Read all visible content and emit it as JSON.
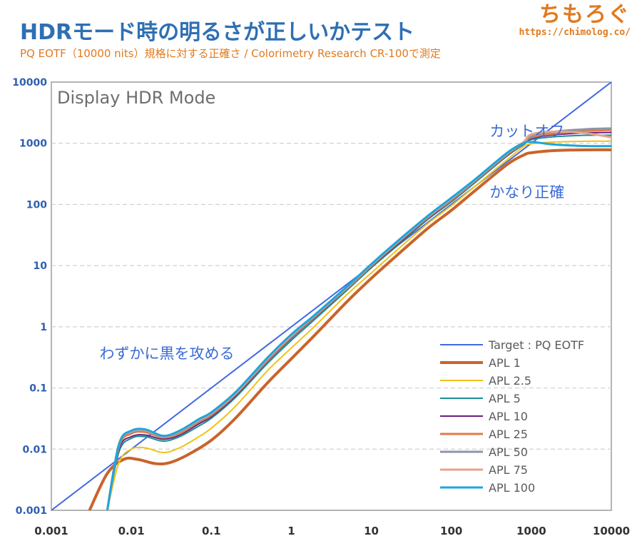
{
  "header": {
    "title": "HDRモード時の明るさが正しいかテスト",
    "subtitle": "PQ EOTF（10000 nits）規格に対する正確さ / Colorimetry Research CR-100で測定",
    "brand": "ちもろぐ",
    "brand_url": "https://chimolog.co/"
  },
  "chart_data": {
    "type": "line",
    "title": "Display HDR Mode",
    "xscale": "log",
    "yscale": "log",
    "xlim": [
      0.001,
      10000
    ],
    "ylim": [
      0.001,
      10000
    ],
    "x_ticks": [
      "0.001",
      "0.01",
      "0.1",
      "1",
      "10",
      "100",
      "1000",
      "10000"
    ],
    "y_ticks": [
      "0.001",
      "0.01",
      "0.1",
      "1",
      "10",
      "100",
      "1000",
      "10000"
    ],
    "grid": "horizontal-dashed",
    "legend_position": "bottom-right",
    "series": [
      {
        "name": "Target : PQ EOTF",
        "color": "#4169e1",
        "width": 2,
        "x": [
          0.001,
          10000
        ],
        "y": [
          0.001,
          10000
        ]
      },
      {
        "name": "APL 1",
        "color": "#c8642a",
        "width": 4,
        "x": [
          0.003,
          0.005,
          0.008,
          0.012,
          0.02,
          0.03,
          0.05,
          0.1,
          0.2,
          0.5,
          1,
          2,
          5,
          10,
          20,
          50,
          100,
          200,
          500,
          800,
          1000,
          2000,
          5000,
          10000
        ],
        "y": [
          0.001,
          0.004,
          0.0068,
          0.0068,
          0.0058,
          0.006,
          0.008,
          0.014,
          0.032,
          0.12,
          0.3,
          0.75,
          2.6,
          6.2,
          14,
          40,
          80,
          170,
          450,
          640,
          700,
          760,
          780,
          780
        ]
      },
      {
        "name": "APL 2.5",
        "color": "#f2c21a",
        "width": 2,
        "x": [
          0.005,
          0.007,
          0.01,
          0.015,
          0.025,
          0.04,
          0.07,
          0.1,
          0.2,
          0.5,
          1,
          2,
          5,
          10,
          20,
          50,
          100,
          200,
          500,
          800,
          1000,
          2000,
          5000,
          10000
        ],
        "y": [
          0.001,
          0.006,
          0.01,
          0.0105,
          0.0088,
          0.0105,
          0.016,
          0.022,
          0.05,
          0.19,
          0.45,
          1.05,
          3.4,
          7.6,
          17,
          48,
          95,
          200,
          540,
          880,
          980,
          1050,
          1080,
          1080
        ]
      },
      {
        "name": "APL 5",
        "color": "#1a8f96",
        "width": 2,
        "x": [
          0.005,
          0.007,
          0.01,
          0.015,
          0.025,
          0.04,
          0.07,
          0.1,
          0.2,
          0.5,
          1,
          2,
          5,
          10,
          20,
          50,
          100,
          200,
          500,
          800,
          1000,
          2000,
          5000,
          10000
        ],
        "y": [
          0.001,
          0.009,
          0.015,
          0.016,
          0.0135,
          0.016,
          0.024,
          0.032,
          0.07,
          0.25,
          0.6,
          1.35,
          4.0,
          9.2,
          20,
          56,
          110,
          230,
          620,
          950,
          1150,
          1280,
          1350,
          1350
        ]
      },
      {
        "name": "APL 10",
        "color": "#6a1f7a",
        "width": 2,
        "x": [
          0.005,
          0.007,
          0.01,
          0.015,
          0.025,
          0.04,
          0.07,
          0.1,
          0.2,
          0.5,
          1,
          2,
          5,
          10,
          20,
          50,
          100,
          200,
          500,
          800,
          1000,
          2000,
          5000,
          10000
        ],
        "y": [
          0.001,
          0.01,
          0.016,
          0.017,
          0.0145,
          0.017,
          0.026,
          0.034,
          0.074,
          0.27,
          0.65,
          1.45,
          4.2,
          9.6,
          21,
          58,
          115,
          240,
          640,
          980,
          1200,
          1380,
          1480,
          1500
        ]
      },
      {
        "name": "APL 25",
        "color": "#e07a4a",
        "width": 3,
        "x": [
          0.005,
          0.007,
          0.01,
          0.015,
          0.025,
          0.04,
          0.07,
          0.1,
          0.2,
          0.5,
          1,
          2,
          5,
          10,
          20,
          50,
          100,
          200,
          500,
          800,
          1000,
          2000,
          5000,
          10000
        ],
        "y": [
          0.001,
          0.011,
          0.018,
          0.019,
          0.0155,
          0.018,
          0.028,
          0.036,
          0.078,
          0.28,
          0.68,
          1.5,
          4.3,
          9.9,
          22,
          60,
          118,
          245,
          660,
          1000,
          1250,
          1450,
          1600,
          1650
        ]
      },
      {
        "name": "APL 50",
        "color": "#8a96a8",
        "width": 3,
        "x": [
          0.005,
          0.007,
          0.01,
          0.015,
          0.025,
          0.04,
          0.07,
          0.1,
          0.2,
          0.5,
          1,
          2,
          5,
          10,
          20,
          50,
          100,
          200,
          500,
          800,
          1000,
          2000,
          5000,
          10000
        ],
        "y": [
          0.001,
          0.012,
          0.019,
          0.02,
          0.016,
          0.019,
          0.029,
          0.038,
          0.08,
          0.29,
          0.7,
          1.55,
          4.4,
          10.2,
          22.5,
          62,
          122,
          250,
          680,
          1020,
          1300,
          1550,
          1700,
          1750
        ]
      },
      {
        "name": "APL 75",
        "color": "#e8a28e",
        "width": 3,
        "x": [
          0.005,
          0.007,
          0.01,
          0.015,
          0.025,
          0.04,
          0.07,
          0.1,
          0.2,
          0.5,
          1,
          2,
          5,
          10,
          20,
          50,
          100,
          200,
          500,
          800,
          1000,
          2000,
          5000,
          10000
        ],
        "y": [
          0.001,
          0.012,
          0.0195,
          0.0205,
          0.0162,
          0.0195,
          0.03,
          0.039,
          0.082,
          0.3,
          0.72,
          1.58,
          4.5,
          10.4,
          23,
          63,
          125,
          255,
          690,
          1050,
          1400,
          1550,
          1450,
          1250
        ]
      },
      {
        "name": "APL 100",
        "color": "#1ba6dc",
        "width": 3,
        "x": [
          0.005,
          0.007,
          0.01,
          0.015,
          0.025,
          0.04,
          0.07,
          0.1,
          0.2,
          0.5,
          1,
          2,
          5,
          10,
          20,
          50,
          100,
          200,
          500,
          800,
          1000,
          2000,
          5000,
          10000
        ],
        "y": [
          0.001,
          0.012,
          0.02,
          0.021,
          0.0165,
          0.02,
          0.031,
          0.04,
          0.085,
          0.31,
          0.75,
          1.6,
          4.6,
          10.6,
          23.5,
          64,
          128,
          260,
          700,
          1000,
          1050,
          950,
          900,
          900
        ]
      }
    ],
    "annotations": [
      {
        "text": "カットオフ",
        "x": 300,
        "y": 1300
      },
      {
        "text": "かなり正確",
        "x": 300,
        "y": 130
      },
      {
        "text": "わずかに黒を攻める",
        "x": 0.004,
        "y": 0.3
      }
    ]
  }
}
